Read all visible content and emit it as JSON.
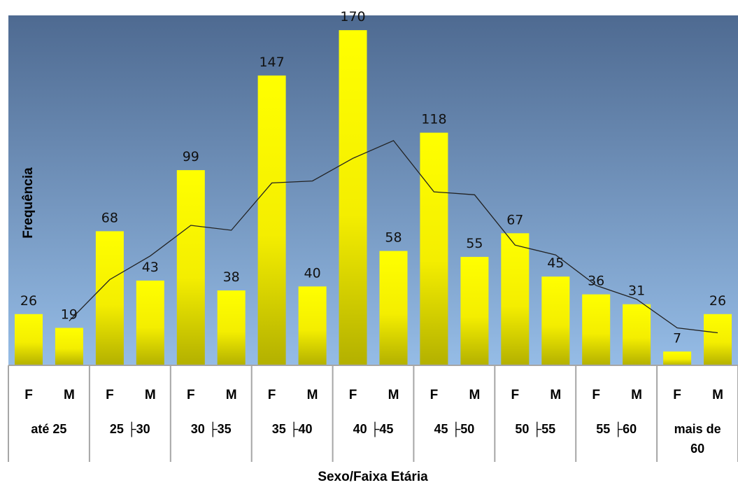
{
  "chart_data": {
    "type": "bar",
    "title": "",
    "xlabel": "Sexo/Faixa Etária",
    "ylabel": "Frequência",
    "ylim": [
      0,
      176
    ],
    "groups": [
      "até 25",
      "25 ├30",
      "30 ├35",
      "35 ├40",
      "40 ├45",
      "45 ├50",
      "50 ├55",
      "55 ├60",
      "mais de 60"
    ],
    "sex_labels": [
      "F",
      "M"
    ],
    "series": [
      {
        "values": [
          26,
          19,
          68,
          43,
          99,
          38,
          147,
          40,
          170,
          58,
          118,
          55,
          67,
          45,
          36,
          31,
          7,
          26
        ]
      }
    ],
    "trendline": {
      "type": "moving-average",
      "period": 2
    },
    "legend": "none",
    "grid": false,
    "colors": {
      "bar_top": "#ffff00",
      "bar_bottom": "#b3b000",
      "plot_top": "#4e6a91",
      "plot_bottom": "#95bce6",
      "line": "#222222"
    }
  }
}
